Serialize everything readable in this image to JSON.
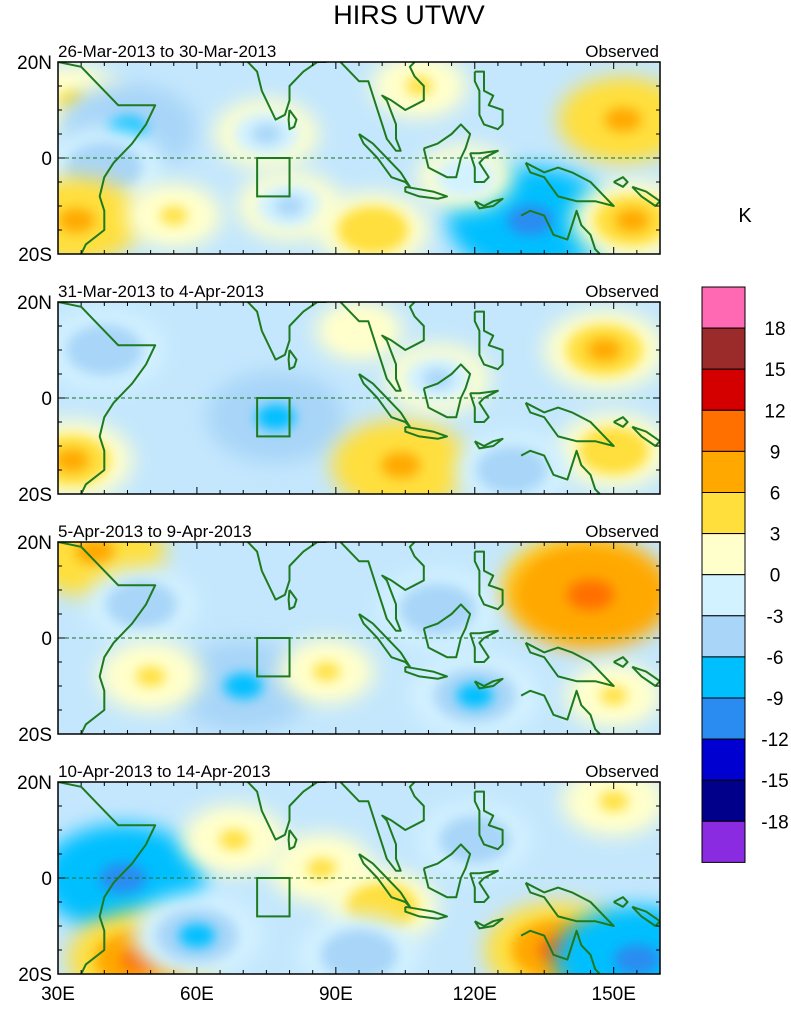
{
  "chart_data": {
    "type": "heatmap",
    "title": "HIRS UTWV",
    "panels": [
      {
        "period": "26-Mar-2013 to 30-Mar-2013",
        "label": "Observed",
        "anomalies": [
          {
            "lon": 33,
            "lat": 12,
            "value": 4
          },
          {
            "lon": 45,
            "lat": 6,
            "value": -8
          },
          {
            "lon": 40,
            "lat": -2,
            "value": -6
          },
          {
            "lon": 34,
            "lat": -13,
            "value": 7
          },
          {
            "lon": 55,
            "lat": -12,
            "value": 3
          },
          {
            "lon": 75,
            "lat": 5,
            "value": -4
          },
          {
            "lon": 80,
            "lat": -10,
            "value": -4
          },
          {
            "lon": 98,
            "lat": -15,
            "value": 5
          },
          {
            "lon": 108,
            "lat": 15,
            "value": 3
          },
          {
            "lon": 132,
            "lat": -13,
            "value": -11
          },
          {
            "lon": 152,
            "lat": 8,
            "value": 7
          },
          {
            "lon": 154,
            "lat": -13,
            "value": 6
          },
          {
            "lon": 118,
            "lat": -4,
            "value": -3
          }
        ]
      },
      {
        "period": "31-Mar-2013 to 4-Apr-2013",
        "label": "Observed",
        "anomalies": [
          {
            "lon": 77,
            "lat": -4,
            "value": -8
          },
          {
            "lon": 40,
            "lat": 10,
            "value": -6
          },
          {
            "lon": 104,
            "lat": -14,
            "value": 8
          },
          {
            "lon": 148,
            "lat": 10,
            "value": 6
          },
          {
            "lon": 150,
            "lat": -11,
            "value": 5
          },
          {
            "lon": 128,
            "lat": -15,
            "value": -5
          },
          {
            "lon": 33,
            "lat": -13,
            "value": 6
          },
          {
            "lon": 112,
            "lat": 4,
            "value": -4
          },
          {
            "lon": 95,
            "lat": 14,
            "value": 2
          }
        ]
      },
      {
        "period": "5-Apr-2013 to 9-Apr-2013",
        "label": "Observed",
        "anomalies": [
          {
            "lon": 38,
            "lat": 18,
            "value": 8
          },
          {
            "lon": 70,
            "lat": -10,
            "value": -8
          },
          {
            "lon": 112,
            "lat": 6,
            "value": -6
          },
          {
            "lon": 120,
            "lat": -12,
            "value": -7
          },
          {
            "lon": 142,
            "lat": 11,
            "value": 9
          },
          {
            "lon": 145,
            "lat": 9,
            "value": 11
          },
          {
            "lon": 48,
            "lat": 7,
            "value": -5
          },
          {
            "lon": 50,
            "lat": -8,
            "value": 4
          },
          {
            "lon": 88,
            "lat": -7,
            "value": 3
          },
          {
            "lon": 150,
            "lat": -12,
            "value": 3
          }
        ]
      },
      {
        "period": "10-Apr-2013 to 14-Apr-2013",
        "label": "Observed",
        "anomalies": [
          {
            "lon": 44,
            "lat": 0,
            "value": -11
          },
          {
            "lon": 48,
            "lat": -17,
            "value": 9
          },
          {
            "lon": 68,
            "lat": 8,
            "value": 4
          },
          {
            "lon": 87,
            "lat": 2,
            "value": 4
          },
          {
            "lon": 100,
            "lat": -6,
            "value": 5
          },
          {
            "lon": 138,
            "lat": -15,
            "value": 9
          },
          {
            "lon": 120,
            "lat": 8,
            "value": -5
          },
          {
            "lon": 150,
            "lat": 16,
            "value": 4
          },
          {
            "lon": 60,
            "lat": -12,
            "value": -7
          },
          {
            "lon": 95,
            "lat": -16,
            "value": -6
          },
          {
            "lon": 155,
            "lat": -17,
            "value": -11
          }
        ]
      }
    ],
    "xlim": [
      30,
      160
    ],
    "ylim": [
      -20,
      20
    ],
    "x_ticks": [
      "30E",
      "60E",
      "90E",
      "120E",
      "150E"
    ],
    "x_tick_values": [
      30,
      60,
      90,
      120,
      150
    ],
    "y_ticks": [
      "20N",
      "0",
      "20S"
    ],
    "y_tick_values": [
      20,
      0,
      -20
    ],
    "legend": {
      "unit": "K",
      "labels": [
        "18",
        "15",
        "12",
        "9",
        "6",
        "3",
        "0",
        "-3",
        "-6",
        "-9",
        "-12",
        "-15",
        "-18"
      ],
      "colors": [
        "#ff69b4",
        "#9b2a2a",
        "#d40000",
        "#ff7000",
        "#ffa800",
        "#ffdf3c",
        "#ffffcc",
        "#d3f2ff",
        "#a8d5f8",
        "#00bfff",
        "#2a8cf0",
        "#0000d0",
        "#00008b",
        "#8a2be2"
      ]
    },
    "box": {
      "lon": [
        73,
        80
      ],
      "lat": [
        -8,
        0
      ]
    }
  }
}
